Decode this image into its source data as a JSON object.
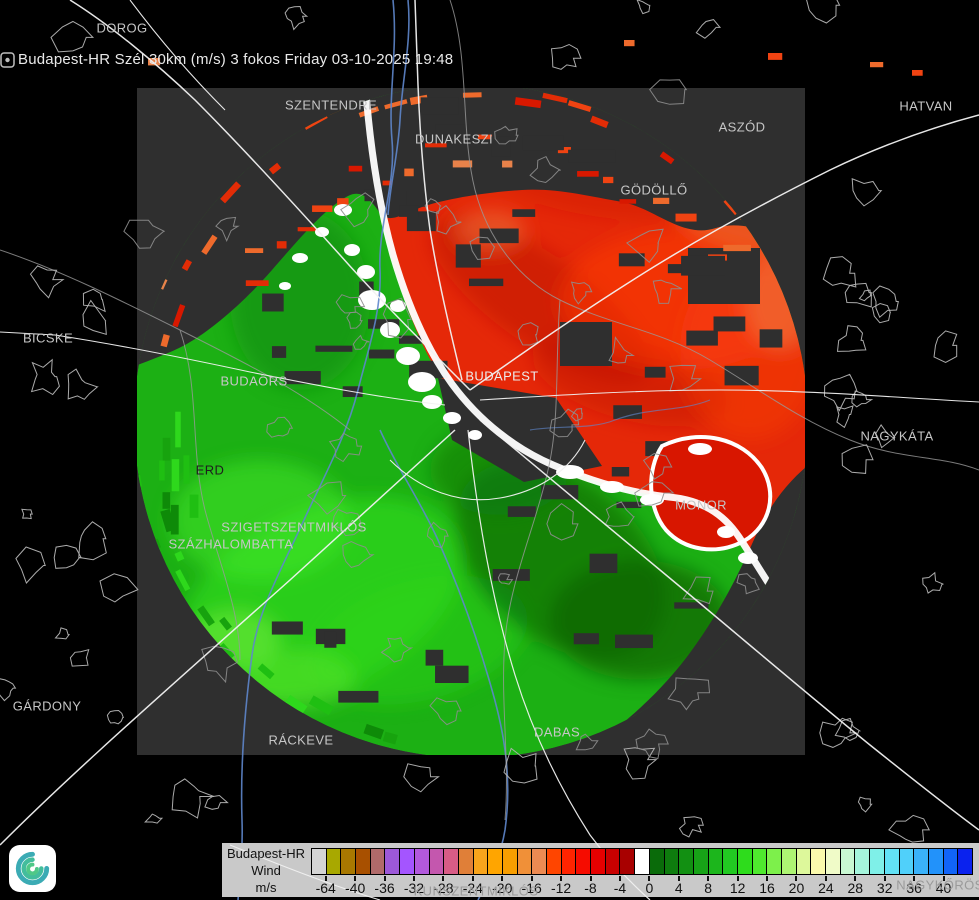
{
  "title_bar": {
    "text": "Budapest-HR Szél 30km (m/s) 3 fokos Friday 03-10-2025 19:48"
  },
  "map": {
    "background_color": "#000000",
    "radar_area_color": "#2F2F2F",
    "toward_color": "#1CB014",
    "away_color": "#E52808",
    "zero_isodop_color": "#FFFFFF",
    "cities": [
      {
        "name": "DOROG"
      },
      {
        "name": "SZENTENDRE"
      },
      {
        "name": "DUNAKESZI"
      },
      {
        "name": "ASZÓD"
      },
      {
        "name": "HATVAN"
      },
      {
        "name": "GÖDÖLLŐ"
      },
      {
        "name": "BICSKE"
      },
      {
        "name": "BUDAÖRS"
      },
      {
        "name": "BUDAPEST"
      },
      {
        "name": "NAGYKÁTA"
      },
      {
        "name": "ERD"
      },
      {
        "name": "MONOR"
      },
      {
        "name": "SZIGETSZENTMIKLÓS"
      },
      {
        "name": "SZÁZHALOMBATTA"
      },
      {
        "name": "GÁRDONY"
      },
      {
        "name": "RÁCKEVE"
      },
      {
        "name": "DABAS"
      },
      {
        "name": "KUNSZENTMIKLÓS"
      },
      {
        "name": "NAGYKŐRÖS"
      }
    ]
  },
  "legend": {
    "product": "Budapest-HR",
    "field": "Wind",
    "unit": "m/s",
    "background": "#C9C9C9",
    "ticks": [
      "-64",
      "-40",
      "-36",
      "-32",
      "-28",
      "-24",
      "-20",
      "-16",
      "-12",
      "-8",
      "-4",
      "0",
      "4",
      "8",
      "12",
      "16",
      "20",
      "24",
      "28",
      "32",
      "36",
      "40"
    ],
    "colors": [
      "#D4D4D4",
      "#A8A800",
      "#A87800",
      "#A85000",
      "#B06A6A",
      "#9C58D8",
      "#A455FF",
      "#B259DD",
      "#C457AE",
      "#D85C86",
      "#E07F38",
      "#F8A41C",
      "#FFA500",
      "#F89E00",
      "#F09038",
      "#EC8A52",
      "#FF4500",
      "#FF2400",
      "#F60C00",
      "#E60000",
      "#C80000",
      "#A80000",
      "#FFFFFF",
      "#0A6B0A",
      "#0E7C0E",
      "#129012",
      "#17A317",
      "#1CB61C",
      "#22C922",
      "#2EDC1C",
      "#4FE92E",
      "#7DF04B",
      "#AEF573",
      "#DDF89B",
      "#FBFAAC",
      "#F0FBC8",
      "#C9F8D2",
      "#A5F5DC",
      "#7FF0E8",
      "#62E2F6",
      "#50D0FA",
      "#3AB2FA",
      "#2292FA",
      "#1164F8",
      "#0A22EE"
    ]
  },
  "logo": {
    "name": "cyclone-spiral-logo"
  }
}
